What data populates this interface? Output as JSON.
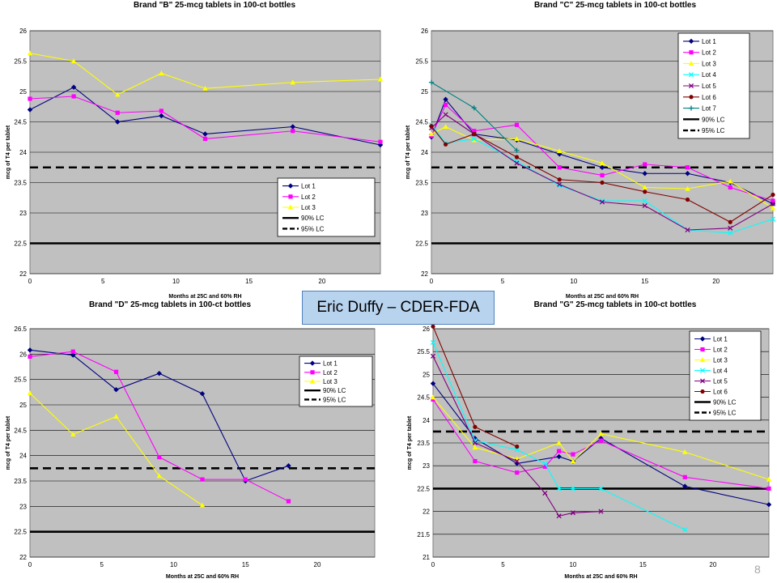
{
  "caption": "Eric Duffy – CDER-FDA",
  "page_number": "8",
  "colors": {
    "plot_background": "#c0c0c0",
    "grid": "#000000",
    "lot1": "#000080",
    "lot2": "#ff00ff",
    "lot3": "#ffff00",
    "lot4": "#00ffff",
    "lot5": "#800080",
    "lot6": "#800000",
    "lot7": "#008080",
    "limit": "#000000"
  },
  "chart_data": [
    {
      "type": "line",
      "title": "Brand \"B\" 25-mcg tablets in 100-ct bottles",
      "xlabel": "Months at 25C and 60% RH",
      "ylabel": "mcg of T4 per tablet",
      "xlim": [
        0,
        24
      ],
      "ylim": [
        22,
        26
      ],
      "xticks": [
        0,
        5,
        10,
        15,
        20
      ],
      "yticks": [
        22,
        22.5,
        23,
        23.5,
        24,
        24.5,
        25,
        25.5,
        26
      ],
      "grid": true,
      "legend": "bottom-right",
      "series": [
        {
          "name": "Lot 1",
          "color": "#000080",
          "marker": "diamond",
          "x": [
            0,
            3,
            6,
            9,
            12,
            18,
            24
          ],
          "y": [
            24.7,
            25.07,
            24.5,
            24.6,
            24.3,
            24.42,
            24.12
          ]
        },
        {
          "name": "Lot 2",
          "color": "#ff00ff",
          "marker": "square",
          "x": [
            0,
            3,
            6,
            9,
            12,
            18,
            24
          ],
          "y": [
            24.88,
            24.92,
            24.65,
            24.68,
            24.22,
            24.35,
            24.17
          ]
        },
        {
          "name": "Lot 3",
          "color": "#ffff00",
          "marker": "triangle",
          "x": [
            0,
            3,
            6,
            9,
            12,
            18,
            24
          ],
          "y": [
            25.63,
            25.5,
            24.95,
            25.3,
            25.05,
            25.15,
            25.2
          ]
        }
      ],
      "limits": [
        {
          "name": "90% LC",
          "value": 22.5,
          "style": "solid"
        },
        {
          "name": "95% LC",
          "value": 23.75,
          "style": "dashed"
        }
      ]
    },
    {
      "type": "line",
      "title": "Brand \"C\" 25-mcg tablets in 100-ct bottles",
      "xlabel": "Months at 25C and 60% RH",
      "ylabel": "mcg of T4 per tablet",
      "xlim": [
        0,
        24
      ],
      "ylim": [
        22,
        26
      ],
      "xticks": [
        0,
        5,
        10,
        15,
        20
      ],
      "yticks": [
        22,
        22.5,
        23,
        23.5,
        24,
        24.5,
        25,
        25.5,
        26
      ],
      "grid": true,
      "legend": "top-right",
      "series": [
        {
          "name": "Lot 1",
          "color": "#000080",
          "marker": "diamond",
          "x": [
            0,
            1,
            3,
            6,
            9,
            12,
            15,
            18,
            21,
            24
          ],
          "y": [
            24.25,
            24.87,
            24.3,
            24.2,
            23.97,
            23.75,
            23.65,
            23.65,
            23.5,
            23.15
          ]
        },
        {
          "name": "Lot 2",
          "color": "#ff00ff",
          "marker": "square",
          "x": [
            0,
            1,
            3,
            6,
            9,
            12,
            15,
            18,
            21,
            24
          ],
          "y": [
            24.27,
            24.78,
            24.35,
            24.45,
            23.75,
            23.62,
            23.8,
            23.75,
            23.42,
            23.2
          ]
        },
        {
          "name": "Lot 3",
          "color": "#ffff00",
          "marker": "triangle",
          "x": [
            0,
            1,
            3,
            6,
            9,
            12,
            15,
            18,
            21,
            24
          ],
          "y": [
            24.3,
            24.42,
            24.2,
            24.22,
            24.02,
            23.82,
            23.42,
            23.4,
            23.52,
            23.08
          ]
        },
        {
          "name": "Lot 4",
          "color": "#00ffff",
          "marker": "x",
          "x": [
            0,
            1,
            3,
            6,
            9,
            12,
            15,
            18,
            21,
            24
          ],
          "y": [
            24.45,
            24.15,
            24.22,
            23.85,
            23.45,
            23.2,
            23.2,
            22.72,
            22.67,
            22.9
          ]
        },
        {
          "name": "Lot 5",
          "color": "#800080",
          "marker": "x",
          "x": [
            0,
            1,
            3,
            6,
            9,
            12,
            15,
            18,
            21,
            24
          ],
          "y": [
            24.4,
            24.62,
            24.3,
            23.82,
            23.47,
            23.18,
            23.12,
            22.72,
            22.75,
            23.15
          ]
        },
        {
          "name": "Lot 6",
          "color": "#800000",
          "marker": "circle",
          "x": [
            0,
            1,
            3,
            6,
            9,
            12,
            15,
            18,
            21,
            24
          ],
          "y": [
            24.43,
            24.13,
            24.3,
            23.92,
            23.55,
            23.5,
            23.35,
            23.22,
            22.85,
            23.3
          ]
        },
        {
          "name": "Lot 7",
          "color": "#008080",
          "marker": "plus",
          "x": [
            0,
            3,
            6
          ],
          "y": [
            25.15,
            24.73,
            24.03
          ]
        }
      ],
      "limits": [
        {
          "name": "90% LC",
          "value": 22.5,
          "style": "solid"
        },
        {
          "name": "95% LC",
          "value": 23.75,
          "style": "dashed"
        }
      ]
    },
    {
      "type": "line",
      "title": "Brand \"D\" 25-mcg tablets in 100-ct bottles",
      "xlabel": "Months at 25C and 60% RH",
      "ylabel": "mcg of T4 per tablet",
      "xlim": [
        0,
        24
      ],
      "ylim": [
        22,
        26.5
      ],
      "xticks": [
        0,
        5,
        10,
        15,
        20
      ],
      "yticks": [
        22,
        22.5,
        23,
        23.5,
        24,
        24.5,
        25,
        25.5,
        26,
        26.5
      ],
      "grid": true,
      "legend": "top-right",
      "series": [
        {
          "name": "Lot 1",
          "color": "#000080",
          "marker": "diamond",
          "x": [
            0,
            3,
            6,
            9,
            12,
            15,
            18
          ],
          "y": [
            26.08,
            25.98,
            25.3,
            25.62,
            25.22,
            23.5,
            23.8
          ]
        },
        {
          "name": "Lot 2",
          "color": "#ff00ff",
          "marker": "square",
          "x": [
            0,
            3,
            6,
            9,
            12,
            15,
            18
          ],
          "y": [
            25.95,
            26.05,
            25.65,
            23.97,
            23.53,
            23.53,
            23.1
          ]
        },
        {
          "name": "Lot 3",
          "color": "#ffff00",
          "marker": "triangle",
          "x": [
            0,
            3,
            6,
            9,
            12
          ],
          "y": [
            25.23,
            24.42,
            24.77,
            23.6,
            23.02
          ]
        }
      ],
      "limits": [
        {
          "name": "90% LC",
          "value": 22.5,
          "style": "solid"
        },
        {
          "name": "95% LC",
          "value": 23.75,
          "style": "dashed"
        }
      ]
    },
    {
      "type": "line",
      "title": "Brand \"G\" 25-mcg tablets in 100-ct bottles",
      "xlabel": "Months at 25C and 60% RH",
      "ylabel": "mcg of T4 per tablet",
      "xlim": [
        0,
        24
      ],
      "ylim": [
        21,
        26
      ],
      "xticks": [
        0,
        5,
        10,
        15,
        20
      ],
      "yticks": [
        21,
        21.5,
        22,
        22.5,
        23,
        23.5,
        24,
        24.5,
        25,
        25.5,
        26
      ],
      "grid": true,
      "legend": "top-right",
      "series": [
        {
          "name": "Lot 1",
          "color": "#000080",
          "marker": "diamond",
          "x": [
            0,
            3,
            6,
            9,
            10,
            12,
            18,
            24
          ],
          "y": [
            24.8,
            23.6,
            23.05,
            23.2,
            23.1,
            23.6,
            22.55,
            22.15
          ]
        },
        {
          "name": "Lot 2",
          "color": "#ff00ff",
          "marker": "square",
          "x": [
            0,
            3,
            6,
            8,
            9,
            10,
            12,
            18,
            24
          ],
          "y": [
            24.45,
            23.1,
            22.85,
            22.98,
            23.32,
            23.25,
            23.55,
            22.75,
            22.5
          ]
        },
        {
          "name": "Lot 3",
          "color": "#ffff00",
          "marker": "triangle",
          "x": [
            0,
            3,
            6,
            9,
            10,
            12,
            18,
            24
          ],
          "y": [
            24.5,
            23.4,
            23.15,
            23.5,
            23.1,
            23.7,
            23.3,
            22.7
          ]
        },
        {
          "name": "Lot 4",
          "color": "#00ffff",
          "marker": "x",
          "x": [
            0,
            3,
            6,
            8,
            9,
            10,
            12,
            18
          ],
          "y": [
            25.7,
            23.55,
            23.35,
            23.05,
            22.5,
            22.5,
            22.5,
            21.6
          ]
        },
        {
          "name": "Lot 5",
          "color": "#800080",
          "marker": "x",
          "x": [
            0,
            3,
            6,
            8,
            9,
            10,
            12
          ],
          "y": [
            25.4,
            23.5,
            23.1,
            22.4,
            21.9,
            21.97,
            22.0
          ]
        },
        {
          "name": "Lot 6",
          "color": "#800000",
          "marker": "circle",
          "x": [
            0,
            3,
            6
          ],
          "y": [
            26.05,
            23.85,
            23.42
          ]
        }
      ],
      "limits": [
        {
          "name": "90% LC",
          "value": 22.5,
          "style": "solid"
        },
        {
          "name": "95% LC",
          "value": 23.75,
          "style": "dashed"
        }
      ]
    }
  ]
}
